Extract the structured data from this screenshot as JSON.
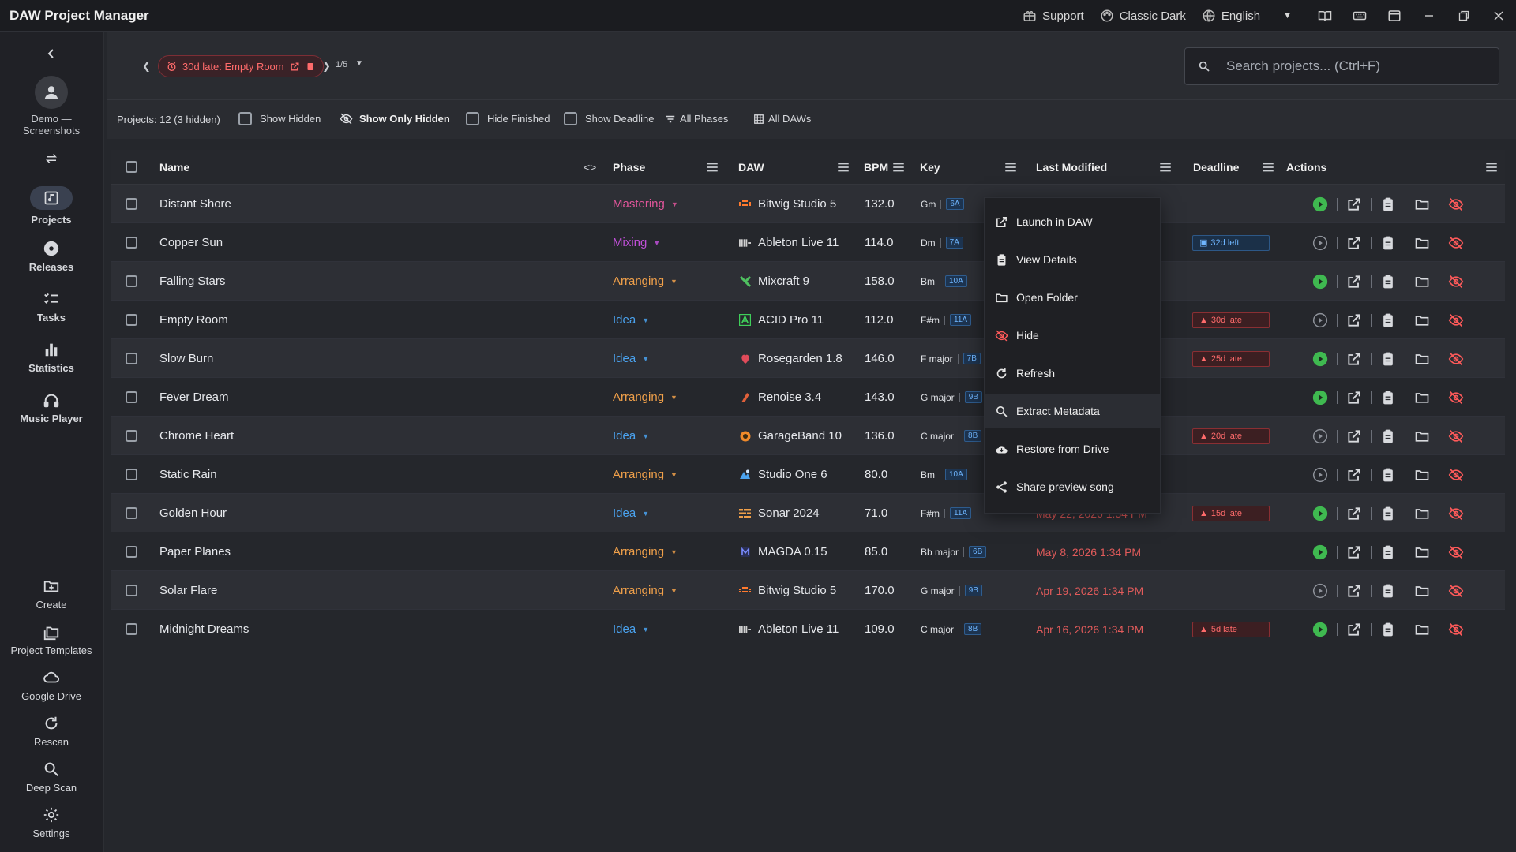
{
  "app": {
    "title": "DAW Project Manager"
  },
  "titlebar": {
    "support": "Support",
    "theme": "Classic Dark",
    "language": "English"
  },
  "sidebar": {
    "user": "Demo — Screenshots",
    "nav": [
      {
        "label": "Projects",
        "icon": "projects-icon"
      },
      {
        "label": "Releases",
        "icon": "disc-icon"
      },
      {
        "label": "Tasks",
        "icon": "tasks-icon"
      },
      {
        "label": "Statistics",
        "icon": "chart-icon"
      },
      {
        "label": "Music Player",
        "icon": "headphones-icon"
      }
    ],
    "bottom": [
      {
        "label": "Create",
        "icon": "folder-plus-icon"
      },
      {
        "label": "Project Templates",
        "icon": "templates-icon"
      },
      {
        "label": "Google Drive",
        "icon": "cloud-icon"
      },
      {
        "label": "Rescan",
        "icon": "refresh-icon"
      },
      {
        "label": "Deep Scan",
        "icon": "search-icon"
      },
      {
        "label": "Settings",
        "icon": "gear-icon"
      }
    ]
  },
  "deadline_nav": {
    "chip": "30d late: Empty Room",
    "page": "1/5"
  },
  "search": {
    "placeholder": "Search projects... (Ctrl+F)"
  },
  "filters": {
    "count": "Projects: 12 (3 hidden)",
    "show_hidden": "Show Hidden",
    "show_only_hidden": "Show Only Hidden",
    "hide_finished": "Hide Finished",
    "show_deadline": "Show Deadline",
    "all_phases": "All Phases",
    "all_daws": "All DAWs"
  },
  "table": {
    "columns": {
      "name": "Name",
      "phase": "Phase",
      "daw": "DAW",
      "bpm": "BPM",
      "key": "Key",
      "modified": "Last Modified",
      "deadline": "Deadline",
      "actions": "Actions"
    },
    "rows": [
      {
        "name": "Distant Shore",
        "phase": "Mastering",
        "phase_color": "#e0559a",
        "daw": "Bitwig Studio 5",
        "daw_icon": "bitwig-icon",
        "daw_color": "#ff7a2e",
        "bpm": "132.0",
        "key": "Gm",
        "camelot": "6A",
        "modified": "",
        "deadline": "",
        "deadline_type": "",
        "play_active": true
      },
      {
        "name": "Copper Sun",
        "phase": "Mixing",
        "phase_color": "#c04fd8",
        "daw": "Ableton Live 11",
        "daw_icon": "ableton-icon",
        "daw_color": "#d0d0d0",
        "bpm": "114.0",
        "key": "Dm",
        "camelot": "7A",
        "modified": "",
        "deadline": "32d left",
        "deadline_type": "left",
        "play_active": false
      },
      {
        "name": "Falling Stars",
        "phase": "Arranging",
        "phase_color": "#f0a04a",
        "daw": "Mixcraft 9",
        "daw_icon": "mixcraft-icon",
        "daw_color": "#4fc060",
        "bpm": "158.0",
        "key": "Bm",
        "camelot": "10A",
        "modified": "",
        "deadline": "",
        "deadline_type": "",
        "play_active": true
      },
      {
        "name": "Empty Room",
        "phase": "Idea",
        "phase_color": "#4aa3f0",
        "daw": "ACID Pro 11",
        "daw_icon": "acid-icon",
        "daw_color": "#3fce5a",
        "bpm": "112.0",
        "key": "F#m",
        "camelot": "11A",
        "modified": "",
        "deadline": "30d late",
        "deadline_type": "late",
        "play_active": false
      },
      {
        "name": "Slow Burn",
        "phase": "Idea",
        "phase_color": "#4aa3f0",
        "daw": "Rosegarden 1.8",
        "daw_icon": "rosegarden-icon",
        "daw_color": "#e04b5a",
        "bpm": "146.0",
        "key": "F major",
        "camelot": "7B",
        "modified": "",
        "deadline": "25d late",
        "deadline_type": "late",
        "play_active": true
      },
      {
        "name": "Fever Dream",
        "phase": "Arranging",
        "phase_color": "#f0a04a",
        "daw": "Renoise 3.4",
        "daw_icon": "renoise-icon",
        "daw_color": "#e0603a",
        "bpm": "143.0",
        "key": "G major",
        "camelot": "9B",
        "modified": "",
        "deadline": "",
        "deadline_type": "",
        "play_active": true
      },
      {
        "name": "Chrome Heart",
        "phase": "Idea",
        "phase_color": "#4aa3f0",
        "daw": "GarageBand 10",
        "daw_icon": "garageband-icon",
        "daw_color": "#f08a2a",
        "bpm": "136.0",
        "key": "C major",
        "camelot": "8B",
        "modified": "",
        "deadline": "20d late",
        "deadline_type": "late",
        "play_active": false
      },
      {
        "name": "Static Rain",
        "phase": "Arranging",
        "phase_color": "#f0a04a",
        "daw": "Studio One 6",
        "daw_icon": "studioone-icon",
        "daw_color": "#4aa3f0",
        "bpm": "80.0",
        "key": "Bm",
        "camelot": "10A",
        "modified": "",
        "deadline": "",
        "deadline_type": "",
        "play_active": false
      },
      {
        "name": "Golden Hour",
        "phase": "Idea",
        "phase_color": "#4aa3f0",
        "daw": "Sonar 2024",
        "daw_icon": "sonar-icon",
        "daw_color": "#f0a04a",
        "bpm": "71.0",
        "key": "F#m",
        "camelot": "11A",
        "modified": "May 22, 2026 1:34 PM",
        "deadline": "15d late",
        "deadline_type": "late",
        "play_active": true
      },
      {
        "name": "Paper Planes",
        "phase": "Arranging",
        "phase_color": "#f0a04a",
        "daw": "MAGDA 0.15",
        "daw_icon": "magda-icon",
        "daw_color": "#7a8cff",
        "bpm": "85.0",
        "key": "Bb major",
        "camelot": "6B",
        "modified": "May 8, 2026 1:34 PM",
        "deadline": "",
        "deadline_type": "",
        "play_active": true
      },
      {
        "name": "Solar Flare",
        "phase": "Arranging",
        "phase_color": "#f0a04a",
        "daw": "Bitwig Studio 5",
        "daw_icon": "bitwig-icon",
        "daw_color": "#ff7a2e",
        "bpm": "170.0",
        "key": "G major",
        "camelot": "9B",
        "modified": "Apr 19, 2026 1:34 PM",
        "deadline": "",
        "deadline_type": "",
        "play_active": false
      },
      {
        "name": "Midnight Dreams",
        "phase": "Idea",
        "phase_color": "#4aa3f0",
        "daw": "Ableton Live 11",
        "daw_icon": "ableton-icon",
        "daw_color": "#d0d0d0",
        "bpm": "109.0",
        "key": "C major",
        "camelot": "8B",
        "modified": "Apr 16, 2026 1:34 PM",
        "deadline": "5d late",
        "deadline_type": "late",
        "play_active": true
      }
    ]
  },
  "context_menu": {
    "items": [
      {
        "label": "Launch in DAW",
        "icon": "launch-icon"
      },
      {
        "label": "View Details",
        "icon": "clipboard-icon"
      },
      {
        "label": "Open Folder",
        "icon": "folder-icon"
      },
      {
        "label": "Hide",
        "icon": "eye-off-icon"
      },
      {
        "label": "Refresh",
        "icon": "refresh-icon"
      },
      {
        "label": "Extract Metadata",
        "icon": "search-icon"
      },
      {
        "label": "Restore from Drive",
        "icon": "cloud-download-icon"
      },
      {
        "label": "Share preview song",
        "icon": "share-icon"
      }
    ]
  },
  "colors": {
    "play_active": "#3fb950",
    "late": "#ff6b6b",
    "accent_blue": "#4aa3f0",
    "hide_icon": "#ff5a5a"
  }
}
